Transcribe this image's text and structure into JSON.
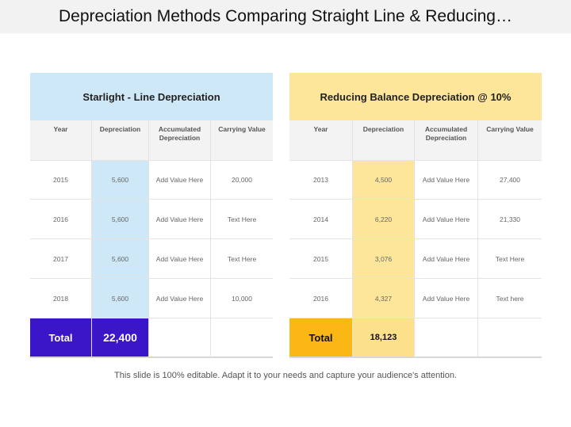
{
  "title": "Depreciation Methods Comparing Straight Line & Reducing…",
  "left": {
    "header": "Starlight - Line Depreciation",
    "columns": [
      "Year",
      "Depreciation",
      "Accumulated Depreciation",
      "Carrying Value"
    ],
    "rows": [
      [
        "2015",
        "5,600",
        "Add Value Here",
        "20,000"
      ],
      [
        "2016",
        "5,600",
        "Add Value Here",
        "Text Here"
      ],
      [
        "2017",
        "5,600",
        "Add Value Here",
        "Text Here"
      ],
      [
        "2018",
        "5,600",
        "Add Value Here",
        "10,000"
      ]
    ],
    "total_label": "Total",
    "total_value": "22,400"
  },
  "right": {
    "header": "Reducing Balance Depreciation @ 10%",
    "columns": [
      "Year",
      "Depreciation",
      "Accumulated Depreciation",
      "Carrying Value"
    ],
    "rows": [
      [
        "2013",
        "4,500",
        "Add Value Here",
        "27,400"
      ],
      [
        "2014",
        "6,220",
        "Add Value Here",
        "21,330"
      ],
      [
        "2015",
        "3,076",
        "Add Value Here",
        "Text Here"
      ],
      [
        "2016",
        "4,327",
        "Add Value Here",
        "Text here"
      ]
    ],
    "total_label": "Total",
    "total_value": "18,123"
  },
  "footer": "This slide is 100% editable. Adapt it to your needs and capture your audience's attention.",
  "colors": {
    "left_accent": "#cfe8f8",
    "left_total": "#3b16c9",
    "right_accent": "#fde69a",
    "right_total": "#fbb714"
  }
}
